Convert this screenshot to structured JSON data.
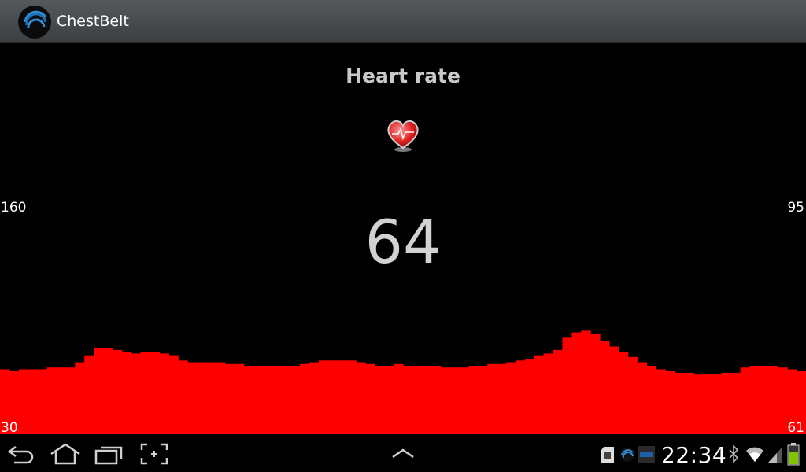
{
  "app": {
    "title": "ChestBelt",
    "logo_icon": "chestbelt-logo-icon"
  },
  "main": {
    "title": "Heart rate",
    "heart_icon": "heart-ecg-icon",
    "current_bpm": "64",
    "left_scale_max": "160",
    "left_scale_min": "30",
    "right_scale_max": "95",
    "right_scale_min": "61"
  },
  "chart_data": {
    "type": "area",
    "color": "#ff0000",
    "ylim": [
      30,
      160
    ],
    "values": [
      67,
      66,
      67,
      67,
      67,
      68,
      68,
      68,
      71,
      75,
      79,
      79,
      78,
      77,
      76,
      77,
      77,
      76,
      75,
      72,
      71,
      71,
      71,
      71,
      70,
      70,
      69,
      69,
      69,
      69,
      69,
      69,
      70,
      71,
      72,
      72,
      72,
      72,
      71,
      70,
      69,
      69,
      70,
      69,
      69,
      69,
      69,
      68,
      68,
      68,
      69,
      69,
      70,
      70,
      71,
      72,
      73,
      75,
      76,
      78,
      85,
      88,
      89,
      87,
      83,
      80,
      77,
      74,
      71,
      69,
      67,
      66,
      65,
      65,
      64,
      64,
      64,
      65,
      65,
      68,
      69,
      69,
      69,
      68,
      67,
      66
    ]
  },
  "navbar": {
    "back_icon": "back-icon",
    "home_icon": "home-icon",
    "recents_icon": "recent-apps-icon",
    "screenshot_icon": "screenshot-icon",
    "menu_icon": "chevron-up-icon",
    "status_icons": [
      "sd-card-icon",
      "chestbelt-status-icon",
      "app-status-icon",
      "bluetooth-icon",
      "wifi-icon",
      "signal-icon",
      "battery-icon"
    ],
    "clock": "22:34"
  }
}
